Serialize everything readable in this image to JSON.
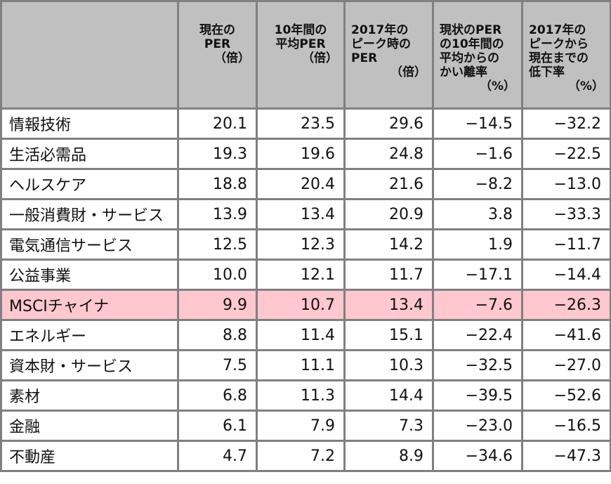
{
  "table": {
    "highlight_color": "#ffc7ce",
    "header_color": "#c0c0c0",
    "border_color": "#808080",
    "columns": [
      {
        "title": "",
        "unit": ""
      },
      {
        "title": "現在の\nPER",
        "unit": "（倍）"
      },
      {
        "title": "10年間の\n平均PER",
        "unit": "（倍）"
      },
      {
        "title": "2017年の\nピーク時の\nPER",
        "unit": "（倍）"
      },
      {
        "title": "現状のPER\nの10年間の\n平均からの\nかい離率",
        "unit": "（%）"
      },
      {
        "title": "2017年の\nピークから\n現在までの\n低下率",
        "unit": "（%）"
      }
    ],
    "rows": [
      {
        "sector": "情報技術",
        "current_per": "20.1",
        "avg10_per": "23.5",
        "peak2017_per": "29.6",
        "deviation_pct": "−14.5",
        "decline_pct": "−32.2",
        "highlight": false
      },
      {
        "sector": "生活必需品",
        "current_per": "19.3",
        "avg10_per": "19.6",
        "peak2017_per": "24.8",
        "deviation_pct": "−1.6",
        "decline_pct": "−22.5",
        "highlight": false
      },
      {
        "sector": "ヘルスケア",
        "current_per": "18.8",
        "avg10_per": "20.4",
        "peak2017_per": "21.6",
        "deviation_pct": "−8.2",
        "decline_pct": "−13.0",
        "highlight": false
      },
      {
        "sector": "一般消費財・サービス",
        "current_per": "13.9",
        "avg10_per": "13.4",
        "peak2017_per": "20.9",
        "deviation_pct": "3.8",
        "decline_pct": "−33.3",
        "highlight": false
      },
      {
        "sector": "電気通信サービス",
        "current_per": "12.5",
        "avg10_per": "12.3",
        "peak2017_per": "14.2",
        "deviation_pct": "1.9",
        "decline_pct": "−11.7",
        "highlight": false
      },
      {
        "sector": "公益事業",
        "current_per": "10.0",
        "avg10_per": "12.1",
        "peak2017_per": "11.7",
        "deviation_pct": "−17.1",
        "decline_pct": "−14.4",
        "highlight": false
      },
      {
        "sector": "MSCIチャイナ",
        "current_per": "9.9",
        "avg10_per": "10.7",
        "peak2017_per": "13.4",
        "deviation_pct": "−7.6",
        "decline_pct": "−26.3",
        "highlight": true
      },
      {
        "sector": "エネルギー",
        "current_per": "8.8",
        "avg10_per": "11.4",
        "peak2017_per": "15.1",
        "deviation_pct": "−22.4",
        "decline_pct": "−41.6",
        "highlight": false
      },
      {
        "sector": "資本財・サービス",
        "current_per": "7.5",
        "avg10_per": "11.1",
        "peak2017_per": "10.3",
        "deviation_pct": "−32.5",
        "decline_pct": "−27.0",
        "highlight": false
      },
      {
        "sector": "素材",
        "current_per": "6.8",
        "avg10_per": "11.3",
        "peak2017_per": "14.4",
        "deviation_pct": "−39.5",
        "decline_pct": "−52.6",
        "highlight": false
      },
      {
        "sector": "金融",
        "current_per": "6.1",
        "avg10_per": "7.9",
        "peak2017_per": "7.3",
        "deviation_pct": "−23.0",
        "decline_pct": "−16.5",
        "highlight": false
      },
      {
        "sector": "不動産",
        "current_per": "4.7",
        "avg10_per": "7.2",
        "peak2017_per": "8.9",
        "deviation_pct": "−34.6",
        "decline_pct": "−47.3",
        "highlight": false
      }
    ]
  }
}
